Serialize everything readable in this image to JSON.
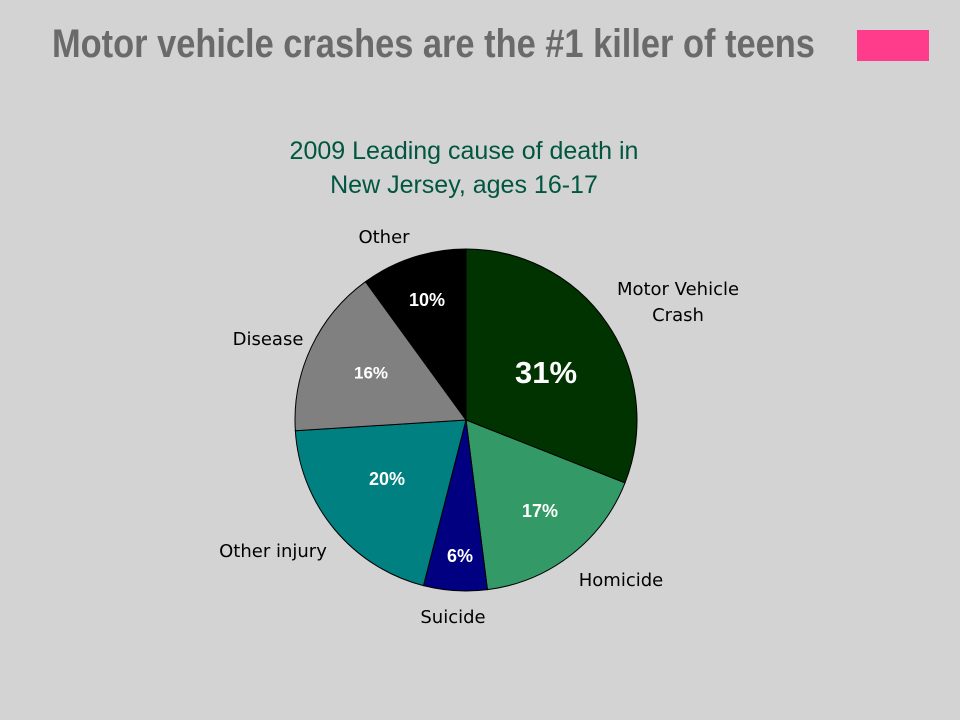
{
  "slide": {
    "title": "Motor vehicle crashes are the #1 killer of teens",
    "accent_color": "#ff3c8c",
    "title_color": "#6a6a6a",
    "background": "#d3d3d3"
  },
  "chart_data": {
    "type": "pie",
    "title_lines": [
      "2009 Leading cause of death in",
      "New Jersey, ages 16-17"
    ],
    "title_color": "#00563f",
    "slices": [
      {
        "category": [
          "Motor Vehicle",
          "Crash"
        ],
        "value": 31,
        "label": "31%",
        "color": "#003300",
        "text_color": "#ffffff"
      },
      {
        "category": [
          "Homicide"
        ],
        "value": 17,
        "label": "17%",
        "color": "#339966",
        "text_color": "#ffffff"
      },
      {
        "category": [
          "Suicide"
        ],
        "value": 6,
        "label": "6%",
        "color": "#000080",
        "text_color": "#ffffff"
      },
      {
        "category": [
          "Other injury"
        ],
        "value": 20,
        "label": "20%",
        "color": "#008080",
        "text_color": "#ffffff"
      },
      {
        "category": [
          "Disease"
        ],
        "value": 16,
        "label": "16%",
        "color": "#808080",
        "text_color": "#ffffff"
      },
      {
        "category": [
          "Other"
        ],
        "value": 10,
        "label": "10%",
        "color": "#000000",
        "text_color": "#ffffff"
      }
    ],
    "start_angle": "12 o'clock",
    "direction": "clockwise"
  }
}
